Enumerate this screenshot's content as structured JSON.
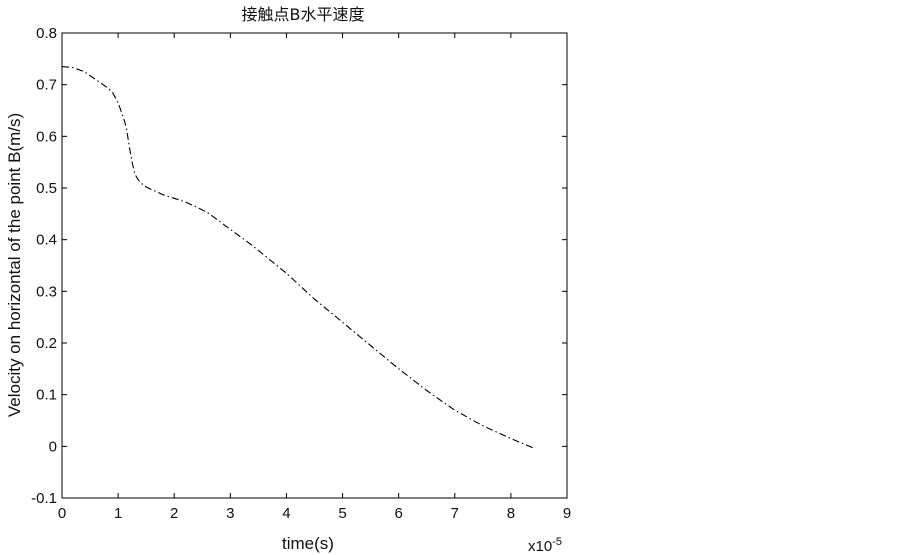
{
  "chart_data": {
    "type": "line",
    "title": "接触点B水平速度",
    "xlabel": "time(s)",
    "ylabel": "Velocity on horizontal of the point B(m/s)",
    "x_multiplier": "x10",
    "x_multiplier_exp": "-5",
    "xlim": [
      0,
      9
    ],
    "ylim": [
      -0.1,
      0.8
    ],
    "x_ticks": [
      0,
      1,
      2,
      3,
      4,
      5,
      6,
      7,
      8,
      9
    ],
    "y_ticks": [
      -0.1,
      0,
      0.1,
      0.2,
      0.3,
      0.4,
      0.5,
      0.6,
      0.7,
      0.8
    ],
    "x_tick_labels": [
      "0",
      "1",
      "2",
      "3",
      "4",
      "5",
      "6",
      "7",
      "8",
      "9"
    ],
    "y_tick_labels": [
      "-0.1",
      "0",
      "0.1",
      "0.2",
      "0.3",
      "0.4",
      "0.5",
      "0.6",
      "0.7",
      "0.8"
    ],
    "grid": false,
    "line_style": "dash-dot",
    "line_color": "#000000",
    "series": [
      {
        "x": [
          0,
          0.2,
          0.4,
          0.6,
          0.8,
          0.9,
          1.0,
          1.1,
          1.15,
          1.2,
          1.25,
          1.3,
          1.35,
          1.4,
          1.5,
          1.6,
          1.8,
          2.0,
          2.2,
          2.4,
          2.6,
          3.0,
          3.4,
          4.0,
          4.5,
          5.0,
          5.5,
          6.0,
          6.5,
          7.0,
          7.5,
          8.0,
          8.4
        ],
        "y": [
          0.735,
          0.733,
          0.725,
          0.71,
          0.695,
          0.685,
          0.665,
          0.635,
          0.615,
          0.58,
          0.55,
          0.527,
          0.517,
          0.51,
          0.502,
          0.497,
          0.487,
          0.48,
          0.473,
          0.463,
          0.452,
          0.42,
          0.388,
          0.335,
          0.285,
          0.24,
          0.195,
          0.15,
          0.108,
          0.07,
          0.04,
          0.015,
          -0.003
        ]
      }
    ]
  }
}
